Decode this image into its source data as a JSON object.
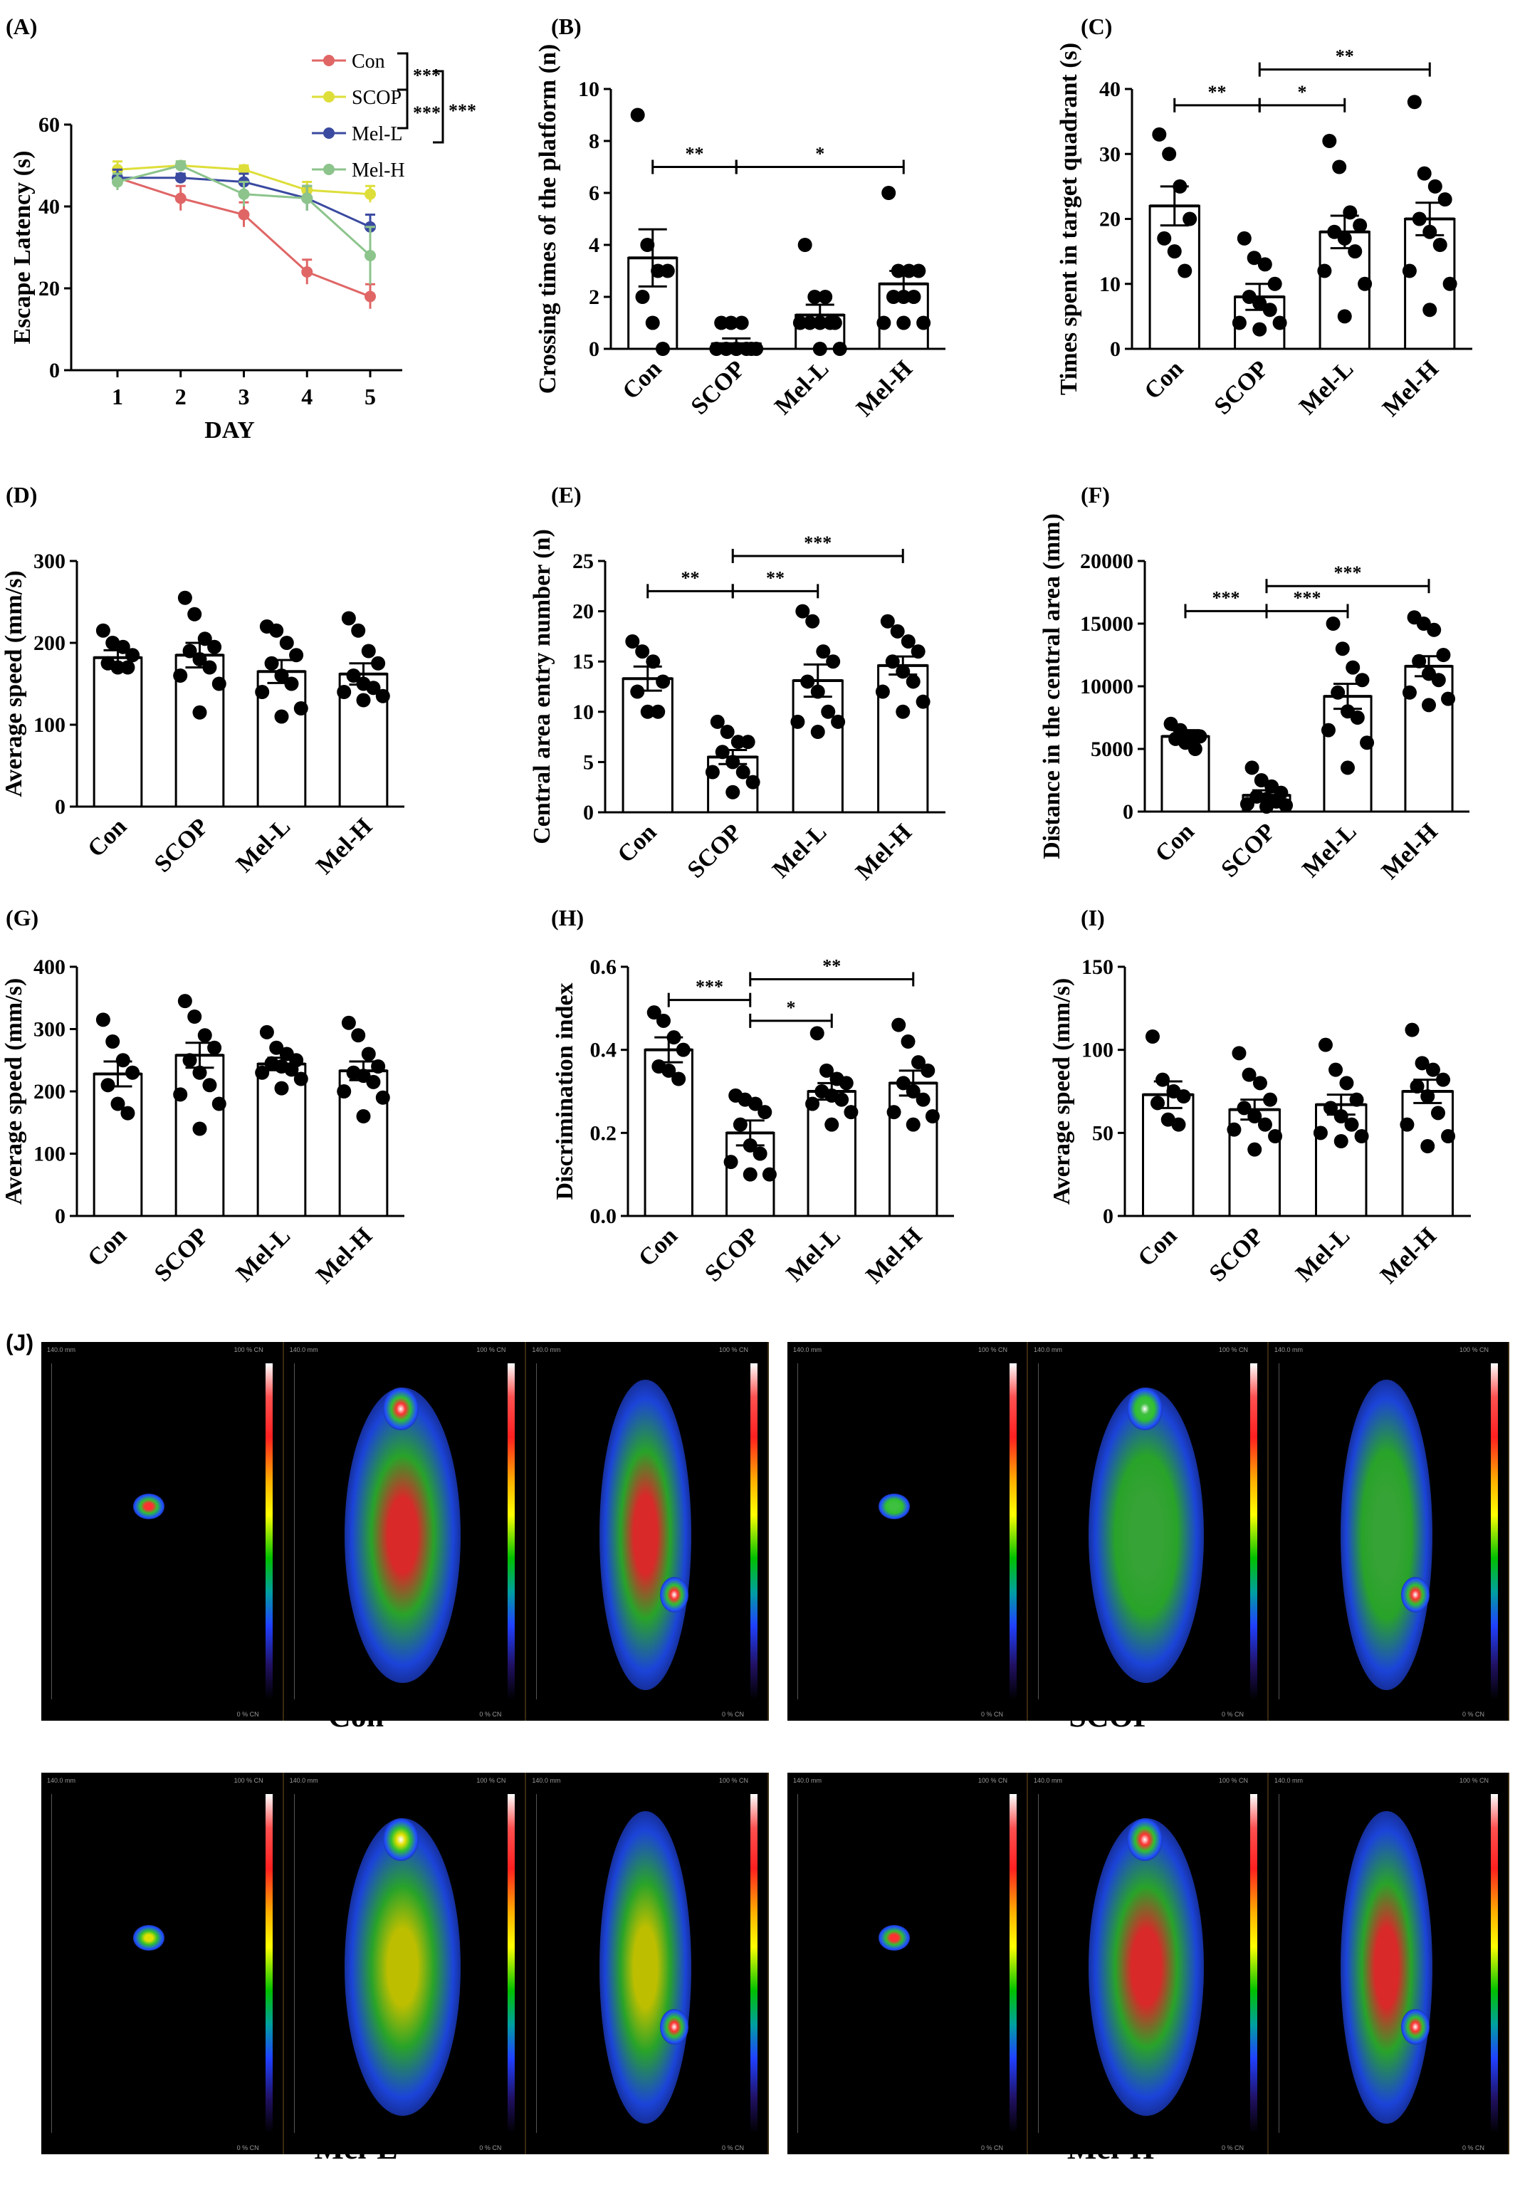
{
  "chart_data": [
    {
      "panel": "(A)",
      "type": "line",
      "xlabel": "DAY",
      "ylabel": "Escape Latency (s)",
      "x": [
        1,
        2,
        3,
        4,
        5
      ],
      "ylim": [
        0,
        60
      ],
      "yticks": [
        0,
        20,
        40,
        60
      ],
      "series": [
        {
          "name": "Con",
          "color": "#e06666",
          "values": [
            47,
            42,
            38,
            24,
            18
          ],
          "err": [
            2,
            3,
            3,
            3,
            3
          ]
        },
        {
          "name": "SCOP",
          "color": "#dede3a",
          "values": [
            49,
            50,
            49,
            44,
            43
          ],
          "err": [
            2,
            1,
            1,
            2,
            2
          ]
        },
        {
          "name": "Mel-L",
          "color": "#3a4aa0",
          "values": [
            47,
            47,
            46,
            42,
            35
          ],
          "err": [
            2,
            1,
            2,
            3,
            3
          ]
        },
        {
          "name": "Mel-H",
          "color": "#8cc48c",
          "values": [
            46,
            50,
            43,
            42,
            28
          ],
          "err": [
            2,
            1,
            3,
            3,
            7
          ]
        }
      ],
      "sig": [
        "***",
        "***",
        "***"
      ]
    },
    {
      "panel": "(B)",
      "type": "bar",
      "ylabel": "Crossing times of the platform (n)",
      "categories": [
        "Con",
        "SCOP",
        "Mel-L",
        "Mel-H"
      ],
      "values": [
        3.5,
        0.2,
        1.3,
        2.5
      ],
      "sem": [
        1.1,
        0.2,
        0.4,
        0.5
      ],
      "ylim": [
        0,
        10
      ],
      "yticks": [
        0,
        2,
        4,
        6,
        8,
        10
      ],
      "points": [
        [
          9,
          4,
          3,
          3,
          2,
          1,
          0
        ],
        [
          1,
          1,
          1,
          0,
          0,
          0,
          0,
          0,
          0,
          0
        ],
        [
          4,
          2,
          2,
          1,
          1,
          1,
          1,
          1,
          0,
          0
        ],
        [
          6,
          3,
          3,
          3,
          2,
          2,
          2,
          1,
          1,
          1
        ]
      ],
      "sig": [
        {
          "from": 0,
          "to": 1,
          "text": "**",
          "y": 7
        },
        {
          "from": 1,
          "to": 3,
          "text": "*",
          "y": 7
        }
      ]
    },
    {
      "panel": "(C)",
      "type": "bar",
      "ylabel": "Times spent in target quadrant (s)",
      "categories": [
        "Con",
        "SCOP",
        "Mel-L",
        "Mel-H"
      ],
      "values": [
        22,
        8,
        18,
        20
      ],
      "sem": [
        3,
        2,
        2.5,
        2.5
      ],
      "ylim": [
        0,
        40
      ],
      "yticks": [
        0,
        10,
        20,
        30,
        40
      ],
      "points": [
        [
          33,
          30,
          25,
          20,
          17,
          15,
          12
        ],
        [
          17,
          14,
          13,
          10,
          8,
          7,
          6,
          4,
          4,
          3
        ],
        [
          32,
          28,
          21,
          19,
          18,
          17,
          15,
          12,
          10,
          5
        ],
        [
          38,
          27,
          25,
          23,
          20,
          18,
          16,
          12,
          10,
          6
        ]
      ],
      "sig": [
        {
          "from": 0,
          "to": 1,
          "text": "**",
          "y": 37.5
        },
        {
          "from": 1,
          "to": 2,
          "text": "*",
          "y": 37.5
        },
        {
          "from": 1,
          "to": 3,
          "text": "**",
          "y": 43
        }
      ]
    },
    {
      "panel": "(D)",
      "type": "bar",
      "ylabel": "Average speed (mm/s)",
      "categories": [
        "Con",
        "SCOP",
        "Mel-L",
        "Mel-H"
      ],
      "values": [
        182,
        185,
        165,
        162
      ],
      "sem": [
        9,
        15,
        14,
        13
      ],
      "ylim": [
        0,
        300
      ],
      "yticks": [
        0,
        100,
        200,
        300
      ],
      "points": [
        [
          215,
          200,
          195,
          185,
          175,
          170,
          170
        ],
        [
          255,
          235,
          205,
          195,
          190,
          180,
          170,
          160,
          150,
          115
        ],
        [
          220,
          215,
          200,
          185,
          175,
          160,
          150,
          140,
          120,
          110
        ],
        [
          230,
          215,
          190,
          175,
          160,
          150,
          145,
          140,
          135,
          130
        ]
      ],
      "sig": []
    },
    {
      "panel": "(E)",
      "type": "bar",
      "ylabel": "Central area entry number (n)",
      "categories": [
        "Con",
        "SCOP",
        "Mel-L",
        "Mel-H"
      ],
      "values": [
        13.3,
        5.5,
        13.1,
        14.6
      ],
      "sem": [
        1.2,
        0.7,
        1.6,
        0.9
      ],
      "ylim": [
        0,
        25
      ],
      "yticks": [
        0,
        5,
        10,
        15,
        20,
        25
      ],
      "points": [
        [
          17,
          16,
          15,
          13,
          12,
          10,
          10
        ],
        [
          9,
          8,
          7,
          7,
          6,
          5,
          4,
          4,
          3,
          2
        ],
        [
          20,
          19,
          16,
          15,
          13,
          12,
          10,
          9,
          9,
          8
        ],
        [
          19,
          18,
          17,
          16,
          15,
          14,
          13,
          12,
          11,
          10
        ]
      ],
      "sig": [
        {
          "from": 0,
          "to": 1,
          "text": "**",
          "y": 22
        },
        {
          "from": 1,
          "to": 2,
          "text": "**",
          "y": 22
        },
        {
          "from": 1,
          "to": 3,
          "text": "***",
          "y": 25.5
        }
      ]
    },
    {
      "panel": "(F)",
      "type": "bar",
      "ylabel": "Distance in the central area (mm)",
      "categories": [
        "Con",
        "SCOP",
        "Mel-L",
        "Mel-H"
      ],
      "values": [
        6000,
        1300,
        9200,
        11600
      ],
      "sem": [
        500,
        400,
        1000,
        800
      ],
      "ylim": [
        0,
        20000
      ],
      "yticks": [
        0,
        5000,
        10000,
        15000,
        20000
      ],
      "points": [
        [
          7000,
          6500,
          6000,
          6000,
          5800,
          5500,
          5000
        ],
        [
          3500,
          2500,
          2000,
          1500,
          1200,
          1000,
          800,
          600,
          500,
          400
        ],
        [
          15000,
          13000,
          11500,
          10500,
          9500,
          8000,
          7500,
          6500,
          5500,
          3500
        ],
        [
          15500,
          15000,
          14500,
          12500,
          12000,
          11000,
          10500,
          9500,
          9000,
          8500
        ]
      ],
      "sig": [
        {
          "from": 0,
          "to": 1,
          "text": "***",
          "y": 16000
        },
        {
          "from": 1,
          "to": 2,
          "text": "***",
          "y": 16000
        },
        {
          "from": 1,
          "to": 3,
          "text": "***",
          "y": 18000
        }
      ]
    },
    {
      "panel": "(G)",
      "type": "bar",
      "ylabel": "Average speed (mm/s)",
      "categories": [
        "Con",
        "SCOP",
        "Mel-L",
        "Mel-H"
      ],
      "values": [
        228,
        258,
        244,
        233
      ],
      "sem": [
        20,
        20,
        10,
        15
      ],
      "ylim": [
        0,
        400
      ],
      "yticks": [
        0,
        100,
        200,
        300,
        400
      ],
      "points": [
        [
          315,
          280,
          250,
          230,
          210,
          180,
          165
        ],
        [
          345,
          320,
          290,
          270,
          250,
          230,
          210,
          195,
          180,
          140
        ],
        [
          295,
          270,
          260,
          250,
          245,
          240,
          235,
          230,
          220,
          205
        ],
        [
          310,
          290,
          260,
          240,
          230,
          225,
          215,
          200,
          190,
          160
        ]
      ],
      "sig": []
    },
    {
      "panel": "(H)",
      "type": "bar",
      "ylabel": "Discrimination index",
      "categories": [
        "Con",
        "SCOP",
        "Mel-L",
        "Mel-H"
      ],
      "values": [
        0.4,
        0.2,
        0.3,
        0.32
      ],
      "sem": [
        0.03,
        0.03,
        0.02,
        0.03
      ],
      "ylim": [
        0,
        0.6
      ],
      "yticks": [
        0.0,
        0.2,
        0.4,
        0.6
      ],
      "points": [
        [
          0.49,
          0.47,
          0.43,
          0.4,
          0.36,
          0.35,
          0.33
        ],
        [
          0.29,
          0.28,
          0.27,
          0.25,
          0.22,
          0.17,
          0.15,
          0.13,
          0.1,
          0.1
        ],
        [
          0.44,
          0.35,
          0.33,
          0.32,
          0.3,
          0.29,
          0.28,
          0.27,
          0.25,
          0.22
        ],
        [
          0.46,
          0.42,
          0.37,
          0.35,
          0.32,
          0.3,
          0.28,
          0.25,
          0.24,
          0.22
        ]
      ],
      "sig": [
        {
          "from": 0,
          "to": 1,
          "text": "***",
          "y": 0.52
        },
        {
          "from": 1,
          "to": 2,
          "text": "*",
          "y": 0.47
        },
        {
          "from": 1,
          "to": 3,
          "text": "**",
          "y": 0.57
        }
      ]
    },
    {
      "panel": "(I)",
      "type": "bar",
      "ylabel": "Average speed (mm/s)",
      "categories": [
        "Con",
        "SCOP",
        "Mel-L",
        "Mel-H"
      ],
      "values": [
        73,
        64,
        67,
        75
      ],
      "sem": [
        8,
        6,
        6,
        7
      ],
      "ylim": [
        0,
        150
      ],
      "yticks": [
        0,
        50,
        100,
        150
      ],
      "points": [
        [
          108,
          82,
          75,
          72,
          68,
          58,
          55
        ],
        [
          98,
          85,
          80,
          70,
          65,
          60,
          55,
          52,
          48,
          40
        ],
        [
          103,
          88,
          80,
          70,
          65,
          60,
          55,
          50,
          48,
          45
        ],
        [
          112,
          92,
          88,
          82,
          78,
          72,
          62,
          55,
          48,
          42
        ]
      ],
      "sig": []
    }
  ],
  "panel_j": {
    "label": "(J)",
    "groups": [
      {
        "caption": "Con",
        "intensity": "high"
      },
      {
        "caption": "SCOP",
        "intensity": "low"
      },
      {
        "caption": "Mel-L",
        "intensity": "medium"
      },
      {
        "caption": "Mel-H",
        "intensity": "high"
      }
    ],
    "scale_top": "100 % CN",
    "scale_bottom": "0 % CN",
    "ruler_label": "140.0 mm"
  },
  "colors": {
    "bar_fill": "#ffffff",
    "bar_stroke": "#000000",
    "point": "#000000",
    "pet_bg": "#000000"
  }
}
